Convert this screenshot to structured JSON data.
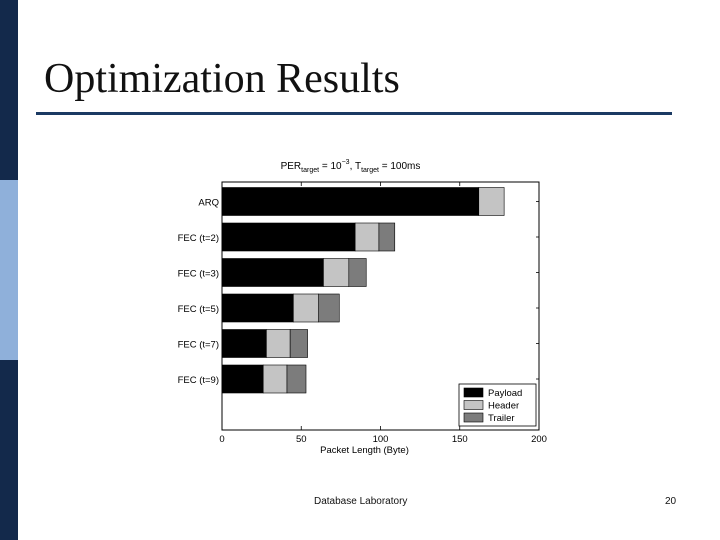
{
  "slide": {
    "title": "Optimization Results",
    "footer": "Database Laboratory",
    "page_number": "20"
  },
  "colors": {
    "sidebar_dark": "#13294b",
    "sidebar_light": "#8fb0da",
    "rule": "#1b3a63"
  },
  "chart_data": {
    "type": "bar",
    "orientation": "horizontal",
    "stacked": true,
    "title": {
      "parts": [
        {
          "text": "PER"
        },
        {
          "text": "target",
          "sub": true
        },
        {
          "text": " = 10"
        },
        {
          "text": "−3",
          "sup": true
        },
        {
          "text": ", T"
        },
        {
          "text": "target",
          "sub": true
        },
        {
          "text": " = 100ms"
        }
      ]
    },
    "xlabel": "Packet Length (Byte)",
    "ylabel": "",
    "xlim": [
      0,
      200
    ],
    "xticks": [
      0,
      50,
      100,
      150,
      200
    ],
    "grid": false,
    "legend_position": "bottom-right",
    "categories": [
      "ARQ",
      "FEC (t=2)",
      "FEC (t=3)",
      "FEC (t=5)",
      "FEC (t=7)",
      "FEC (t=9)"
    ],
    "series": [
      {
        "name": "Payload",
        "color": "#000000",
        "values": [
          162,
          84,
          64,
          45,
          28,
          26
        ]
      },
      {
        "name": "Header",
        "color": "#c4c4c4",
        "values": [
          16,
          15,
          16,
          16,
          15,
          15
        ]
      },
      {
        "name": "Trailer",
        "color": "#7c7c7c",
        "values": [
          0,
          10,
          11,
          13,
          11,
          12
        ]
      }
    ]
  }
}
